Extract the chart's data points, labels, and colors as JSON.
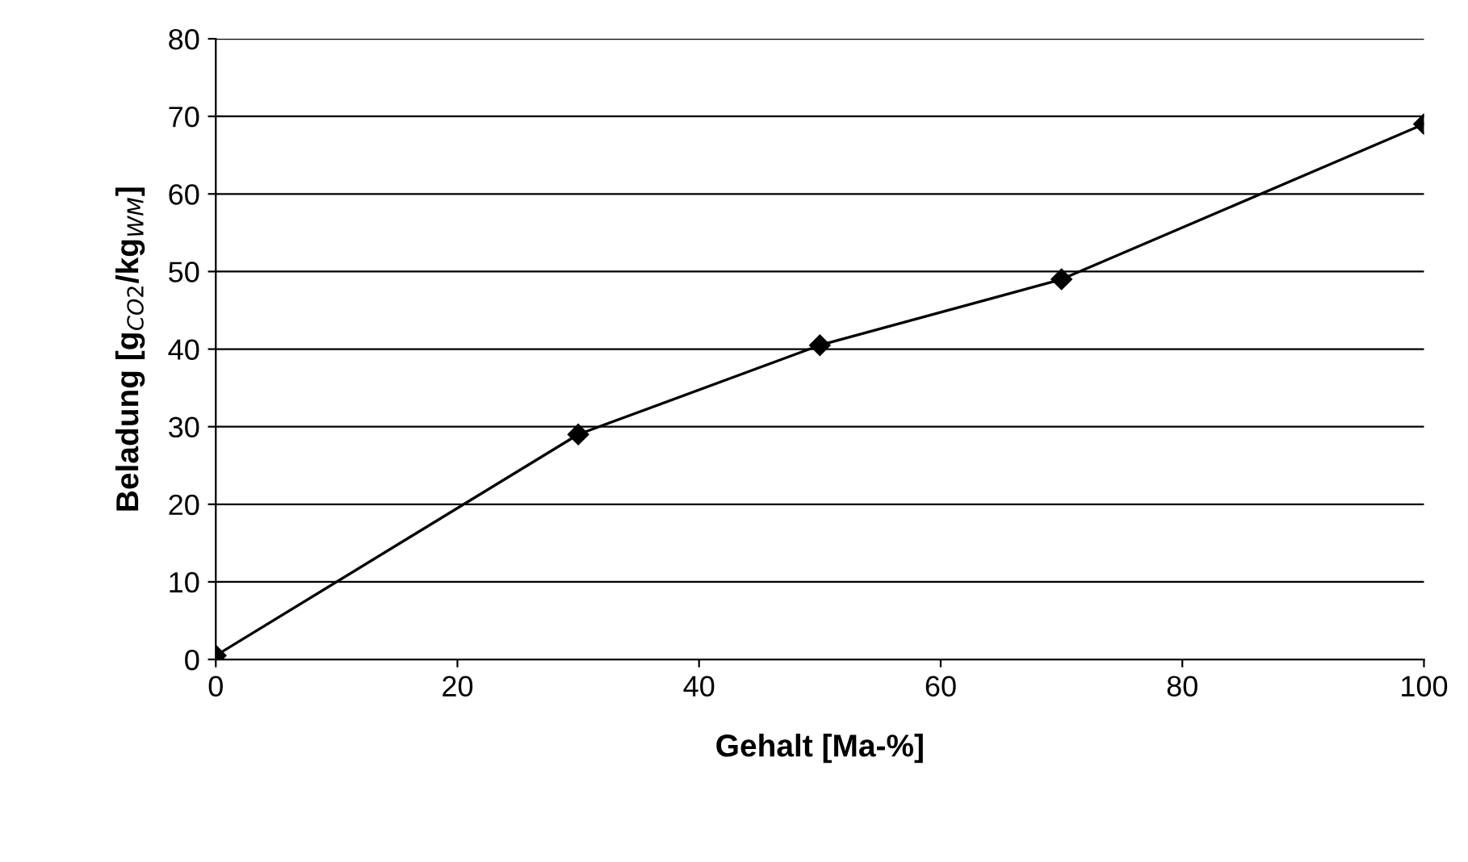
{
  "chart_data": {
    "type": "line",
    "xlabel": "Gehalt [Ma-%]",
    "ylabel": "Beladung [g$_{CO2}$/kg$_{WM}$]",
    "x": [
      0,
      30,
      50,
      70,
      100
    ],
    "series": [
      {
        "color": "#000000",
        "values": [
          0.5,
          29,
          40.5,
          49,
          69
        ]
      }
    ],
    "xlim": [
      0,
      100
    ],
    "xticks": [
      0,
      20,
      40,
      60,
      80,
      100
    ],
    "ylim": [
      0,
      80
    ],
    "yticks": [
      0,
      10,
      20,
      30,
      40,
      50,
      60,
      70,
      80
    ],
    "grid": "y",
    "marker": "diamond",
    "line_style": "solid",
    "legend": false
  }
}
